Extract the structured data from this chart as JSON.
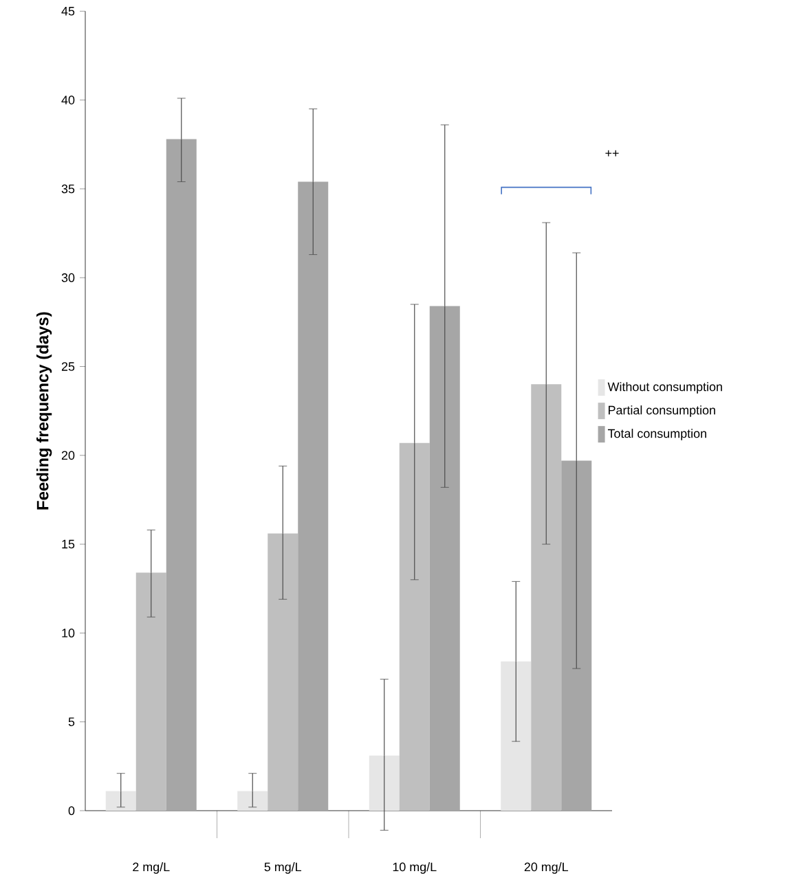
{
  "chart_data": {
    "type": "bar",
    "ylabel": "Feeding frequency (days)",
    "categories": [
      "2 mg/L",
      "5 mg/L",
      "10 mg/L",
      "20 mg/L"
    ],
    "series": [
      {
        "name": "Without consumption",
        "color": "#e6e6e6",
        "values": [
          1.1,
          1.1,
          3.1,
          8.4
        ],
        "errors": [
          [
            0.2,
            2.1
          ],
          [
            0.2,
            2.1
          ],
          [
            -1.1,
            7.4
          ],
          [
            3.9,
            12.9
          ]
        ]
      },
      {
        "name": "Partial consumption",
        "color": "#bfbfbf",
        "values": [
          13.4,
          15.6,
          20.7,
          24.0
        ],
        "errors": [
          [
            10.9,
            15.8
          ],
          [
            11.9,
            19.4
          ],
          [
            13.0,
            28.5
          ],
          [
            15.0,
            33.1
          ]
        ]
      },
      {
        "name": "Total consumption",
        "color": "#a6a6a6",
        "values": [
          37.8,
          35.4,
          28.4,
          19.7
        ],
        "errors": [
          [
            35.4,
            40.1
          ],
          [
            31.3,
            39.5
          ],
          [
            18.2,
            38.6
          ],
          [
            8.0,
            31.4
          ]
        ]
      }
    ],
    "ylim": [
      0,
      45
    ],
    "yticks": [
      0,
      5,
      10,
      15,
      20,
      25,
      30,
      35,
      40,
      45
    ],
    "annotations": [
      "++"
    ],
    "legend": "right",
    "grid": false
  }
}
